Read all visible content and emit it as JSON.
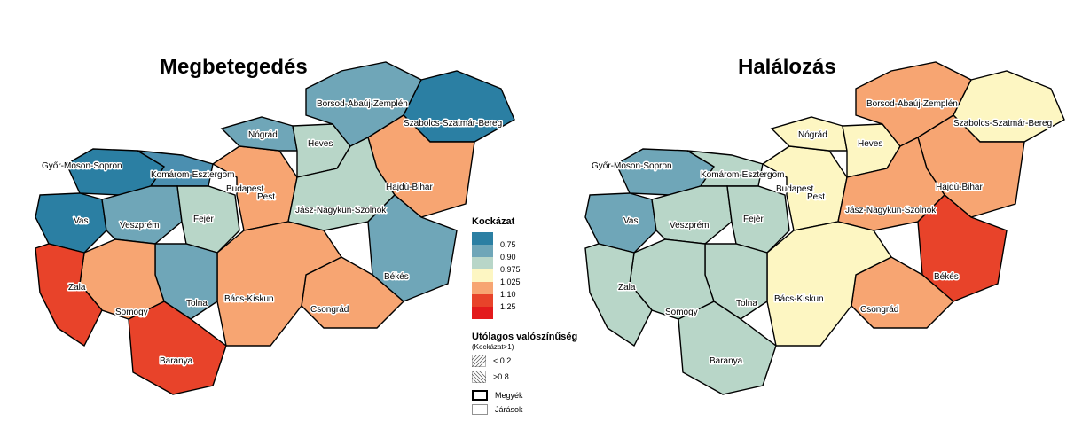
{
  "maps": {
    "left": {
      "title": "Megbetegedés"
    },
    "right": {
      "title": "Halálozás"
    }
  },
  "counties": {
    "gyor": "Győr-Moson-Sopron",
    "komarom": "Komárom-Esztergom",
    "vas": "Vas",
    "veszprem": "Veszprém",
    "fejer": "Fejér",
    "budapest": "Budapest",
    "pest": "Pest",
    "nograd": "Nógrád",
    "heves": "Heves",
    "borsod": "Borsod-Abaúj-Zemplén",
    "szabolcs": "Szabolcs-Szatmár-Bereg",
    "hajdu": "Hajdú-Bihar",
    "jasz": "Jász-Nagykun-Szolnok",
    "bekes": "Békés",
    "csongrad": "Csongrád",
    "bacs": "Bács-Kiskun",
    "tolna": "Tolna",
    "baranya": "Baranya",
    "somogy": "Somogy",
    "zala": "Zala"
  },
  "legend": {
    "risk_title": "Kockázat",
    "classes": [
      {
        "label": "0.75",
        "color": "#2b7fa3"
      },
      {
        "label": "0.90",
        "color": "#6fa6b8"
      },
      {
        "label": "0.975",
        "color": "#b8d6c8"
      },
      {
        "label": "1.025",
        "color": "#fdf6c2"
      },
      {
        "label": "1.10",
        "color": "#f7a572"
      },
      {
        "label": "1.25",
        "color": "#e8432a"
      },
      {
        "label": "",
        "color": "#e31a1c"
      }
    ],
    "prob_title": "Utólagos valószínűség",
    "prob_sub": "(Kockázat>1)",
    "prob_low": "< 0.2",
    "prob_high": ">0.8",
    "county_boundary": "Megyék",
    "district_boundary": "Járások"
  },
  "colors": {
    "blue_dark": "#2b7fa3",
    "blue_mid": "#6fa6b8",
    "green_pale": "#b8d6c8",
    "yellow_pale": "#fdf6c2",
    "orange": "#f7a572",
    "red": "#e31a1c"
  }
}
